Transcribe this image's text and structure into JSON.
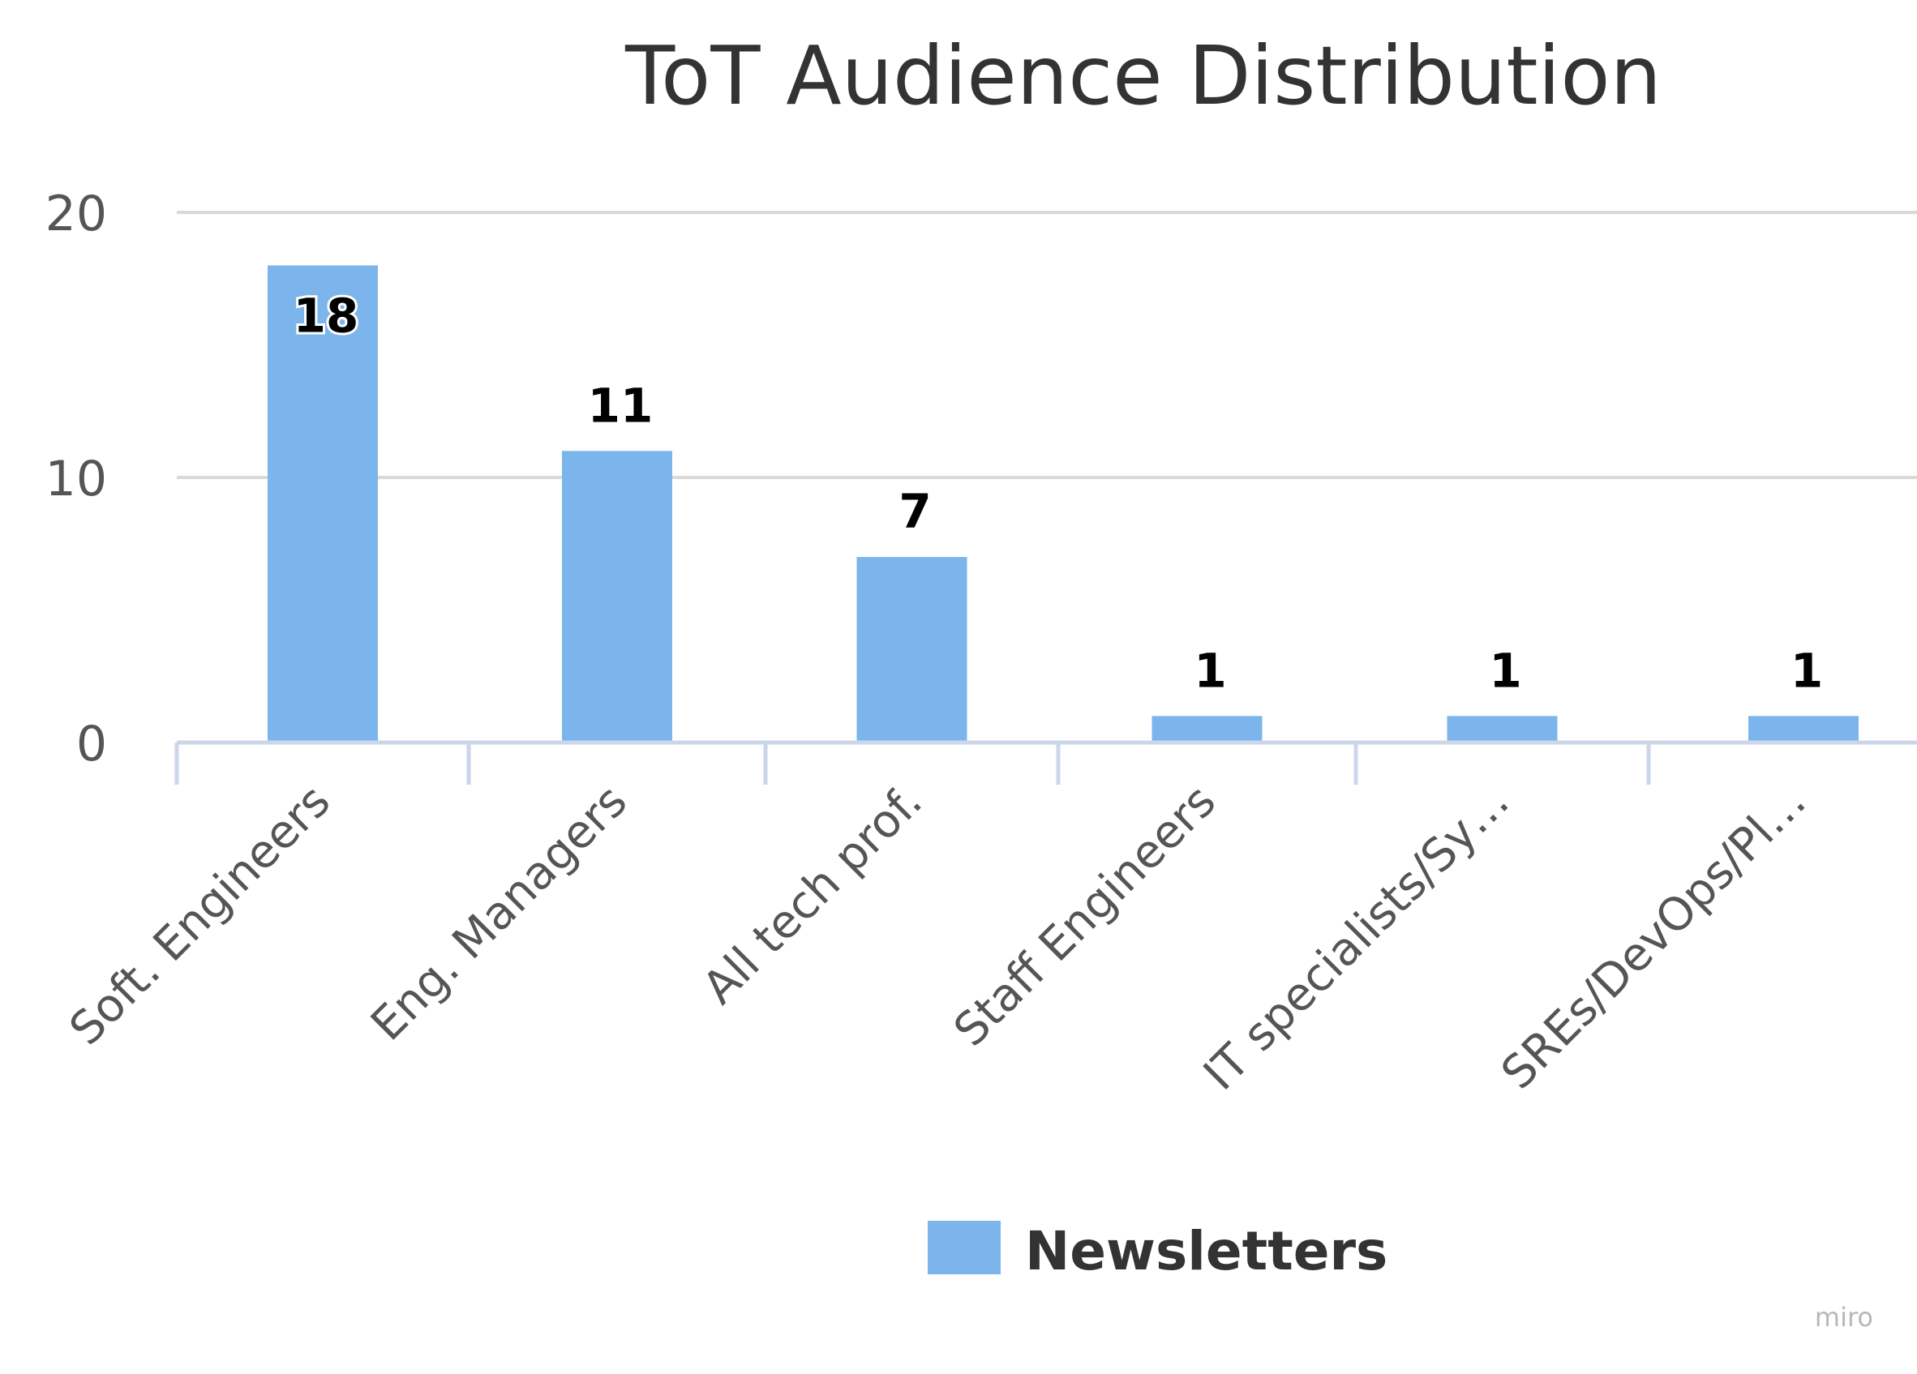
{
  "chart_data": {
    "type": "bar",
    "title": "ToT Audience Distribution",
    "xlabel": "",
    "ylabel": "",
    "categories": [
      "Soft. Engineers",
      "Eng. Managers",
      "All tech prof.",
      "Staff Engineers",
      "IT specialists/Sy…",
      "SREs/DevOps/Pl…"
    ],
    "series": [
      {
        "name": "Newsletters",
        "values": [
          18,
          11,
          7,
          1,
          1,
          1
        ],
        "color": "#7cb5ec"
      }
    ],
    "ylim": [
      0,
      20
    ],
    "yticks": [
      "0",
      "10",
      "20"
    ],
    "grid": true,
    "legend": "bottom-center"
  },
  "watermark": "miro"
}
